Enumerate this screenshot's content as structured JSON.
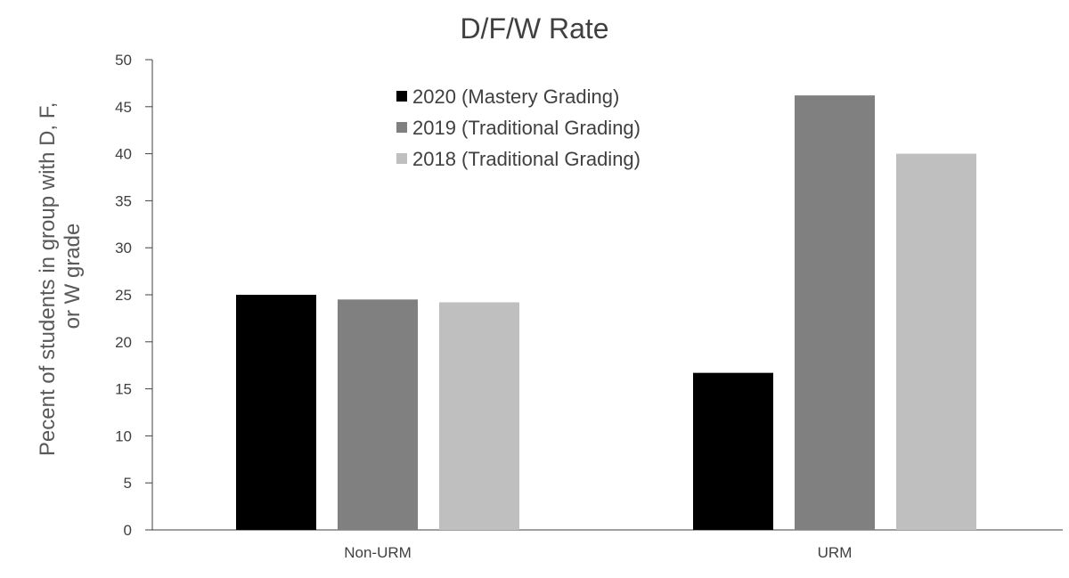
{
  "chart_data": {
    "type": "bar",
    "title": "D/F/W Rate",
    "ylabel": [
      "Pecent of students in group with D, F,",
      "or W grade"
    ],
    "xlabel": "",
    "categories": [
      "Non-URM",
      "URM"
    ],
    "ylim": [
      0,
      50
    ],
    "yticks": [
      "0",
      "5",
      "10",
      "15",
      "20",
      "25",
      "30",
      "35",
      "40",
      "45",
      "50"
    ],
    "grid": false,
    "legend_position": "top-center",
    "series": [
      {
        "name": "2020 (Mastery Grading)",
        "color": "#000000",
        "values": [
          25.0,
          16.7
        ]
      },
      {
        "name": "2019 (Traditional Grading)",
        "color": "#808080",
        "values": [
          24.5,
          46.2
        ]
      },
      {
        "name": "2018 (Traditional Grading)",
        "color": "#bfbfbf",
        "values": [
          24.2,
          40.0
        ]
      }
    ]
  }
}
